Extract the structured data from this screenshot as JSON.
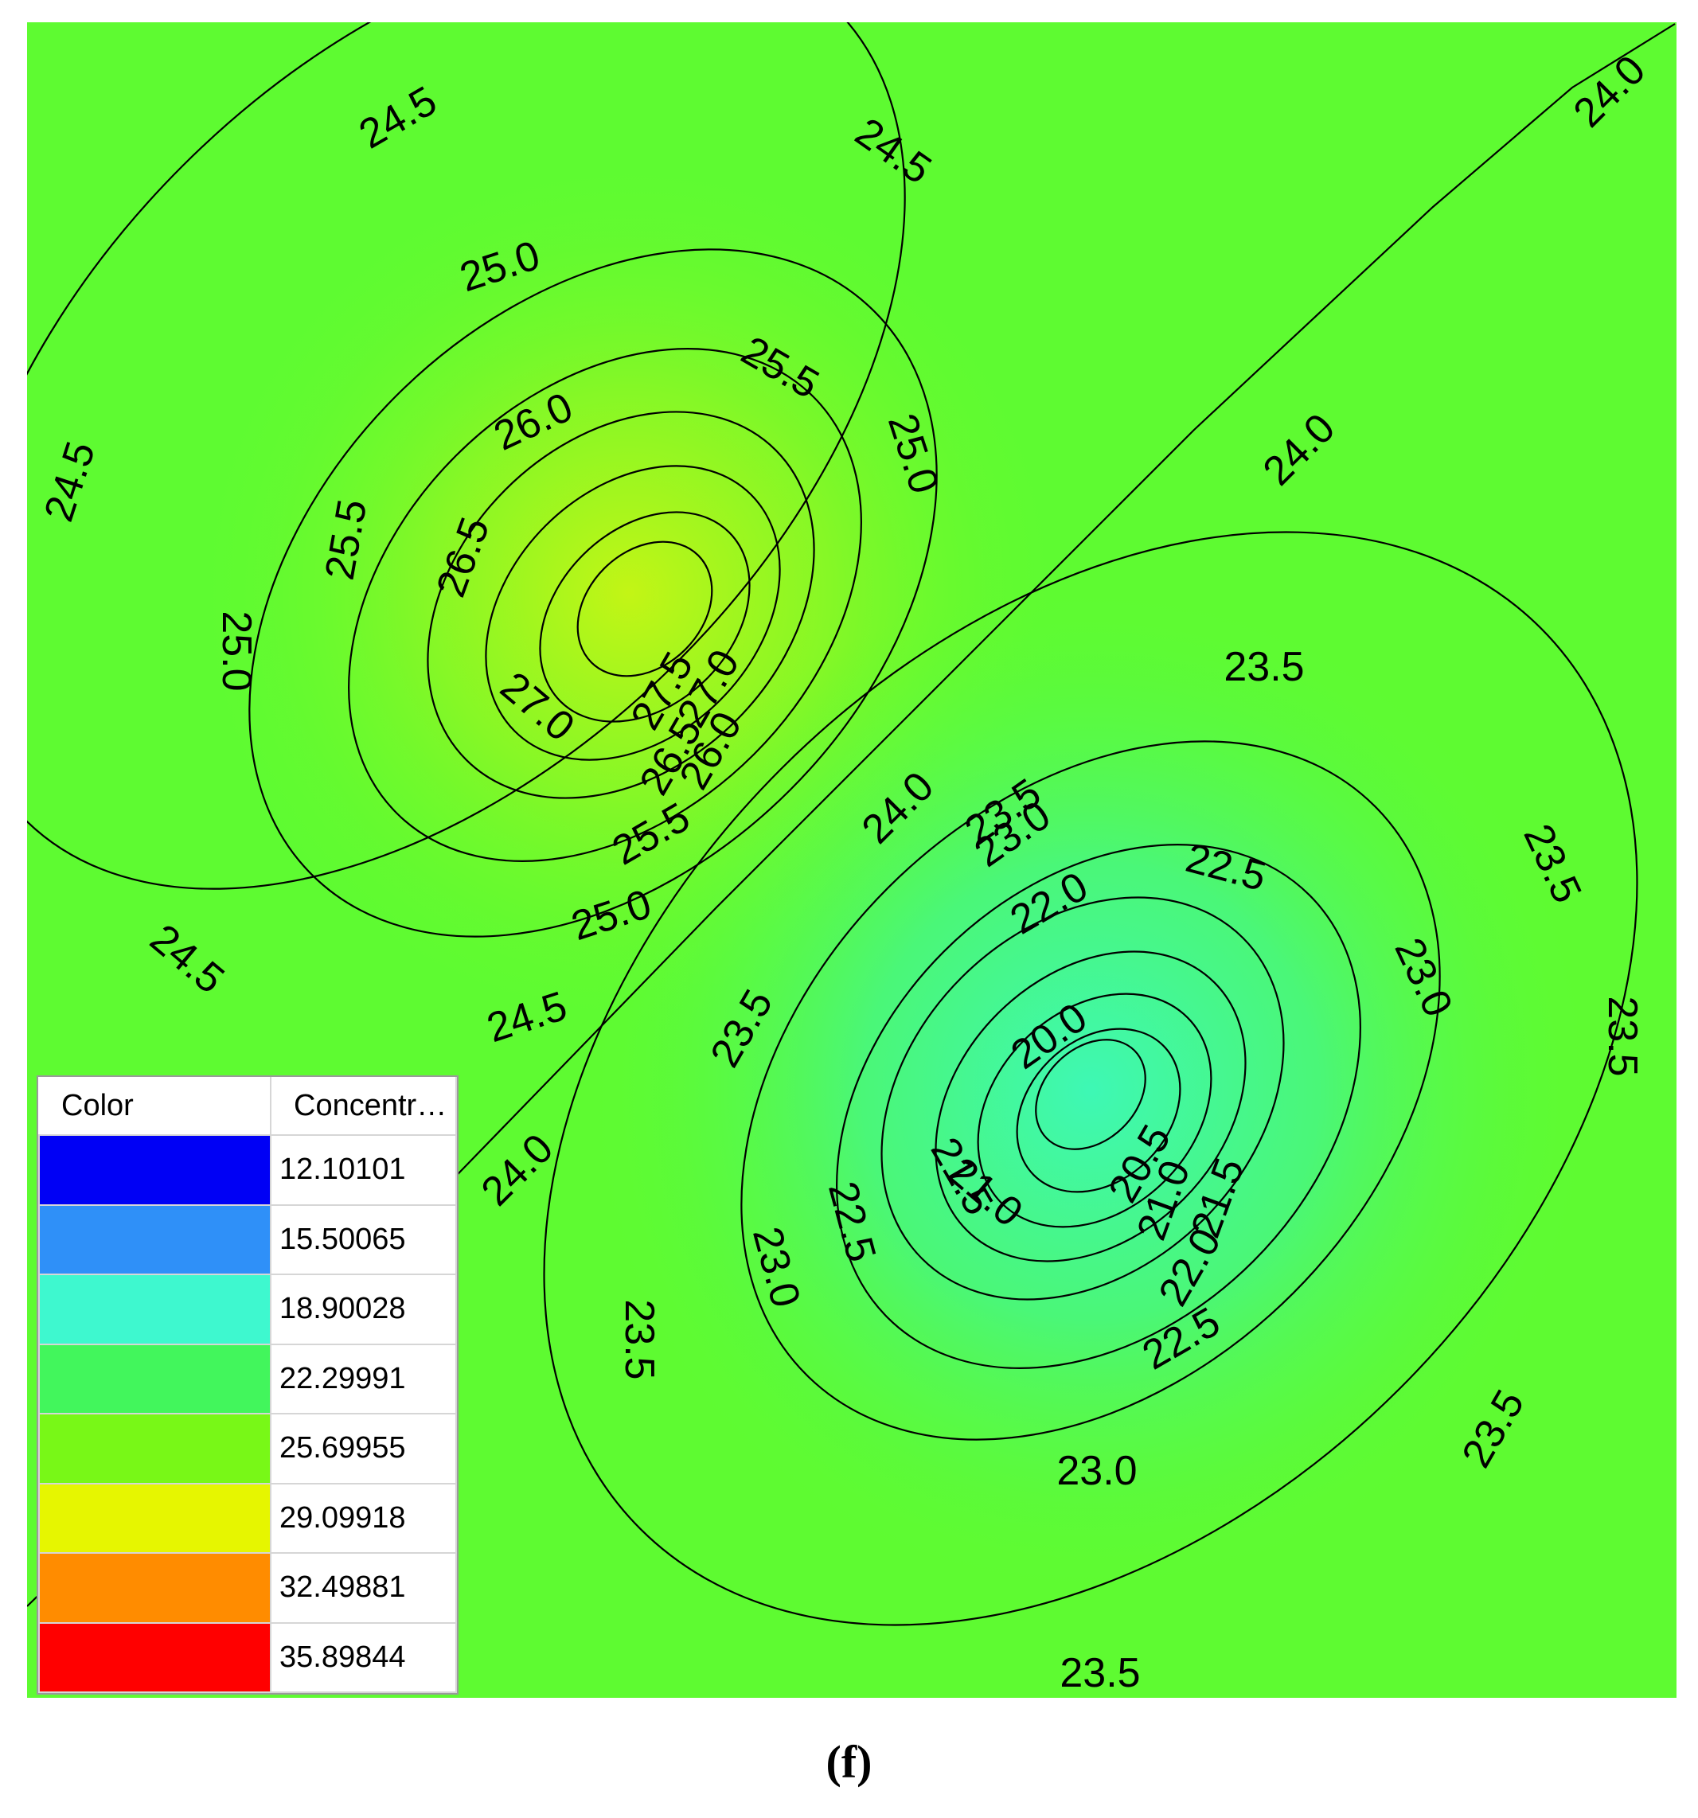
{
  "chart_data": {
    "type": "contour",
    "background_color": "#5efb31",
    "maximum": {
      "value": 28.3,
      "color": "#c3f515"
    },
    "minimum": {
      "value": 19.6,
      "color": "#3ef8b5"
    },
    "contours": [
      {
        "level": "24.5",
        "labels": [
          "24.5",
          "24.5",
          "24.5",
          "24.5",
          "24.5"
        ]
      },
      {
        "level": "25.0",
        "labels": [
          "25.0",
          "25.0",
          "25.0",
          "25.0"
        ]
      },
      {
        "level": "25.5",
        "labels": [
          "25.5",
          "25.5",
          "25.5"
        ]
      },
      {
        "level": "26.0",
        "labels": [
          "26.0",
          "26.0"
        ]
      },
      {
        "level": "26.5",
        "labels": [
          "26.5",
          "26.5"
        ]
      },
      {
        "level": "27.0",
        "labels": [
          "27.0",
          "27.0"
        ]
      },
      {
        "level": "27.5",
        "labels": [
          "27.5"
        ]
      },
      {
        "level": "24.0",
        "labels": [
          "24.0",
          "24.0",
          "24.0",
          "24.0"
        ]
      },
      {
        "level": "23.5",
        "labels": [
          "23.5",
          "23.5",
          "23.5",
          "23.5",
          "23.5",
          "23.5",
          "23.5",
          "23.5"
        ]
      },
      {
        "level": "23.0",
        "labels": [
          "23.0",
          "23.0",
          "23.0",
          "23.0"
        ]
      },
      {
        "level": "22.5",
        "labels": [
          "22.5",
          "22.5",
          "22.5"
        ]
      },
      {
        "level": "22.0",
        "labels": [
          "22.0",
          "22.0"
        ]
      },
      {
        "level": "21.5",
        "labels": [
          "21.5",
          "21.5"
        ]
      },
      {
        "level": "21.0",
        "labels": [
          "21.0",
          "21.0"
        ]
      },
      {
        "level": "20.5",
        "labels": [
          "20.5"
        ]
      },
      {
        "level": "20.0",
        "labels": [
          "20.0"
        ]
      }
    ],
    "legend": {
      "headers": [
        "Color",
        "Concentra..."
      ],
      "entries": [
        {
          "value": "12.10101",
          "color": "#0000f5"
        },
        {
          "value": "15.50065",
          "color": "#2f90f8"
        },
        {
          "value": "18.90028",
          "color": "#3ef8cf"
        },
        {
          "value": "22.29991",
          "color": "#42f65c"
        },
        {
          "value": "25.69955",
          "color": "#78f817"
        },
        {
          "value": "29.09918",
          "color": "#e6f600"
        },
        {
          "value": "32.49881",
          "color": "#ff8c00"
        },
        {
          "value": "35.89844",
          "color": "#ff0000"
        }
      ]
    }
  },
  "caption": "(f)"
}
